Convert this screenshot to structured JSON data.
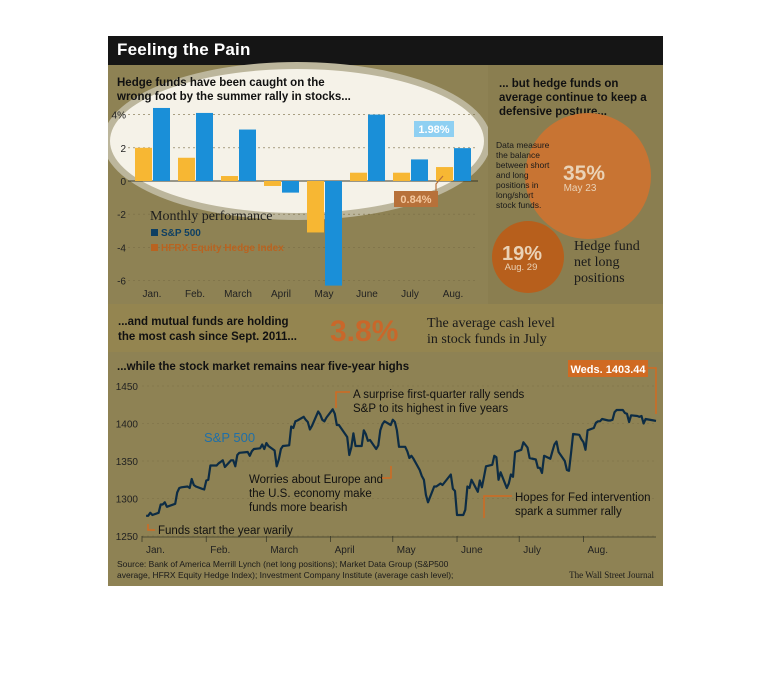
{
  "title": "Feeling the Pain",
  "colors": {
    "background": "#8e8254",
    "title_bar": "#151515",
    "sp500_bar": "#1a8fd8",
    "hfrx_bar": "#f7b733",
    "sp500_dark": "#0e3f62",
    "hfrx_dark": "#b96320",
    "highlight": "#f5f2e8",
    "circle_35": "#c87433",
    "circle_19": "#b75f1c",
    "accent_label": "#d06a22",
    "line": "#0d2c44"
  },
  "chart_data": [
    {
      "type": "bar",
      "title": "Hedge funds have been caught on the wrong foot by the summer rally in stocks...",
      "subtitle": "Monthly performance",
      "categories": [
        "Jan.",
        "Feb.",
        "March",
        "April",
        "May",
        "June",
        "July",
        "Aug."
      ],
      "series": [
        {
          "name": "S&P 500",
          "values": [
            4.4,
            4.1,
            3.1,
            -0.7,
            -6.3,
            4.0,
            1.3,
            1.98
          ]
        },
        {
          "name": "HFRX Equity Hedge Index",
          "values": [
            2.0,
            1.4,
            0.3,
            -0.3,
            -3.1,
            0.5,
            0.5,
            0.84
          ]
        }
      ],
      "yticks": [
        "4%",
        "2",
        "0",
        "-2",
        "-4",
        "-6"
      ],
      "ylim": [
        -6.5,
        4.6
      ],
      "annotations": [
        "1.98%",
        "0.84%"
      ],
      "legend_position": "center-left"
    },
    {
      "type": "line",
      "title": "...while the stock market remains near five-year highs",
      "series_label": "S&P 500",
      "ylim": [
        1250,
        1450
      ],
      "yticks": [
        "1450",
        "1400",
        "1350",
        "1300",
        "1250"
      ],
      "xticks": [
        "Jan.",
        "Feb.",
        "March",
        "April",
        "May",
        "June",
        "July",
        "Aug."
      ],
      "x_range": [
        "2012-01-01",
        "2012-09-05"
      ],
      "points": [
        [
          "2012-01-03",
          1277
        ],
        [
          "2012-01-04",
          1277
        ],
        [
          "2012-01-05",
          1281
        ],
        [
          "2012-01-06",
          1278
        ],
        [
          "2012-01-09",
          1281
        ],
        [
          "2012-01-10",
          1292
        ],
        [
          "2012-01-11",
          1292
        ],
        [
          "2012-01-12",
          1295
        ],
        [
          "2012-01-13",
          1289
        ],
        [
          "2012-01-17",
          1293
        ],
        [
          "2012-01-18",
          1308
        ],
        [
          "2012-01-19",
          1314
        ],
        [
          "2012-01-20",
          1315
        ],
        [
          "2012-01-23",
          1316
        ],
        [
          "2012-01-24",
          1314
        ],
        [
          "2012-01-25",
          1326
        ],
        [
          "2012-01-26",
          1318
        ],
        [
          "2012-01-27",
          1316
        ],
        [
          "2012-01-30",
          1313
        ],
        [
          "2012-01-31",
          1312
        ],
        [
          "2012-02-01",
          1324
        ],
        [
          "2012-02-02",
          1325
        ],
        [
          "2012-02-03",
          1344
        ],
        [
          "2012-02-06",
          1344
        ],
        [
          "2012-02-07",
          1347
        ],
        [
          "2012-02-08",
          1349
        ],
        [
          "2012-02-09",
          1351
        ],
        [
          "2012-02-10",
          1342
        ],
        [
          "2012-02-13",
          1351
        ],
        [
          "2012-02-14",
          1351
        ],
        [
          "2012-02-15",
          1343
        ],
        [
          "2012-02-16",
          1358
        ],
        [
          "2012-02-17",
          1361
        ],
        [
          "2012-02-21",
          1362
        ],
        [
          "2012-02-22",
          1357
        ],
        [
          "2012-02-23",
          1363
        ],
        [
          "2012-02-24",
          1366
        ],
        [
          "2012-02-27",
          1367
        ],
        [
          "2012-02-28",
          1372
        ],
        [
          "2012-02-29",
          1366
        ],
        [
          "2012-03-01",
          1374
        ],
        [
          "2012-03-02",
          1370
        ],
        [
          "2012-03-05",
          1364
        ],
        [
          "2012-03-06",
          1343
        ],
        [
          "2012-03-07",
          1352
        ],
        [
          "2012-03-08",
          1366
        ],
        [
          "2012-03-09",
          1370
        ],
        [
          "2012-03-12",
          1371
        ],
        [
          "2012-03-13",
          1396
        ],
        [
          "2012-03-14",
          1394
        ],
        [
          "2012-03-15",
          1403
        ],
        [
          "2012-03-16",
          1404
        ],
        [
          "2012-03-19",
          1409
        ],
        [
          "2012-03-20",
          1405
        ],
        [
          "2012-03-21",
          1402
        ],
        [
          "2012-03-22",
          1392
        ],
        [
          "2012-03-23",
          1397
        ],
        [
          "2012-03-26",
          1416
        ],
        [
          "2012-03-27",
          1412
        ],
        [
          "2012-03-28",
          1405
        ],
        [
          "2012-03-29",
          1403
        ],
        [
          "2012-03-30",
          1408
        ],
        [
          "2012-04-02",
          1419
        ],
        [
          "2012-04-03",
          1413
        ],
        [
          "2012-04-04",
          1398
        ],
        [
          "2012-04-05",
          1398
        ],
        [
          "2012-04-09",
          1382
        ],
        [
          "2012-04-10",
          1358
        ],
        [
          "2012-04-11",
          1368
        ],
        [
          "2012-04-12",
          1387
        ],
        [
          "2012-04-13",
          1370
        ],
        [
          "2012-04-16",
          1370
        ],
        [
          "2012-04-17",
          1391
        ],
        [
          "2012-04-18",
          1386
        ],
        [
          "2012-04-19",
          1377
        ],
        [
          "2012-04-20",
          1378
        ],
        [
          "2012-04-23",
          1366
        ],
        [
          "2012-04-24",
          1371
        ],
        [
          "2012-04-25",
          1391
        ],
        [
          "2012-04-26",
          1399
        ],
        [
          "2012-04-27",
          1403
        ],
        [
          "2012-04-30",
          1398
        ],
        [
          "2012-05-01",
          1405
        ],
        [
          "2012-05-02",
          1402
        ],
        [
          "2012-05-03",
          1391
        ],
        [
          "2012-05-04",
          1369
        ],
        [
          "2012-05-07",
          1369
        ],
        [
          "2012-05-08",
          1363
        ],
        [
          "2012-05-09",
          1354
        ],
        [
          "2012-05-10",
          1357
        ],
        [
          "2012-05-11",
          1353
        ],
        [
          "2012-05-14",
          1338
        ],
        [
          "2012-05-15",
          1330
        ],
        [
          "2012-05-16",
          1325
        ],
        [
          "2012-05-17",
          1305
        ],
        [
          "2012-05-18",
          1295
        ],
        [
          "2012-05-21",
          1316
        ],
        [
          "2012-05-22",
          1316
        ],
        [
          "2012-05-23",
          1318
        ],
        [
          "2012-05-24",
          1320
        ],
        [
          "2012-05-25",
          1318
        ],
        [
          "2012-05-29",
          1332
        ],
        [
          "2012-05-30",
          1313
        ],
        [
          "2012-05-31",
          1310
        ],
        [
          "2012-06-01",
          1278
        ],
        [
          "2012-06-04",
          1278
        ],
        [
          "2012-06-05",
          1285
        ],
        [
          "2012-06-06",
          1316
        ],
        [
          "2012-06-07",
          1314
        ],
        [
          "2012-06-08",
          1325
        ],
        [
          "2012-06-11",
          1309
        ],
        [
          "2012-06-12",
          1324
        ],
        [
          "2012-06-13",
          1315
        ],
        [
          "2012-06-14",
          1329
        ],
        [
          "2012-06-15",
          1343
        ],
        [
          "2012-06-18",
          1345
        ],
        [
          "2012-06-19",
          1357
        ],
        [
          "2012-06-20",
          1355
        ],
        [
          "2012-06-21",
          1325
        ],
        [
          "2012-06-22",
          1335
        ],
        [
          "2012-06-25",
          1314
        ],
        [
          "2012-06-26",
          1320
        ],
        [
          "2012-06-27",
          1332
        ],
        [
          "2012-06-28",
          1329
        ],
        [
          "2012-06-29",
          1362
        ],
        [
          "2012-07-02",
          1365
        ],
        [
          "2012-07-03",
          1375
        ],
        [
          "2012-07-05",
          1368
        ],
        [
          "2012-07-06",
          1354
        ],
        [
          "2012-07-09",
          1352
        ],
        [
          "2012-07-10",
          1341
        ],
        [
          "2012-07-11",
          1341
        ],
        [
          "2012-07-12",
          1334
        ],
        [
          "2012-07-13",
          1357
        ],
        [
          "2012-07-16",
          1353
        ],
        [
          "2012-07-17",
          1363
        ],
        [
          "2012-07-18",
          1372
        ],
        [
          "2012-07-19",
          1376
        ],
        [
          "2012-07-20",
          1362
        ],
        [
          "2012-07-23",
          1350
        ],
        [
          "2012-07-24",
          1338
        ],
        [
          "2012-07-25",
          1337
        ],
        [
          "2012-07-26",
          1360
        ],
        [
          "2012-07-27",
          1386
        ],
        [
          "2012-07-30",
          1385
        ],
        [
          "2012-07-31",
          1379
        ],
        [
          "2012-08-01",
          1375
        ],
        [
          "2012-08-02",
          1365
        ],
        [
          "2012-08-03",
          1391
        ],
        [
          "2012-08-06",
          1394
        ],
        [
          "2012-08-07",
          1401
        ],
        [
          "2012-08-08",
          1403
        ],
        [
          "2012-08-09",
          1403
        ],
        [
          "2012-08-10",
          1406
        ],
        [
          "2012-08-13",
          1404
        ],
        [
          "2012-08-14",
          1404
        ],
        [
          "2012-08-15",
          1405
        ],
        [
          "2012-08-16",
          1415
        ],
        [
          "2012-08-17",
          1418
        ],
        [
          "2012-08-20",
          1418
        ],
        [
          "2012-08-21",
          1414
        ],
        [
          "2012-08-22",
          1413
        ],
        [
          "2012-08-23",
          1402
        ],
        [
          "2012-08-24",
          1411
        ],
        [
          "2012-08-27",
          1410
        ],
        [
          "2012-08-28",
          1409
        ],
        [
          "2012-08-29",
          1410
        ],
        [
          "2012-08-30",
          1400
        ],
        [
          "2012-08-31",
          1406
        ],
        [
          "2012-09-04",
          1404
        ],
        [
          "2012-09-05",
          1403.44
        ]
      ],
      "annotations": [
        "A surprise first-quarter rally sends S&P to its highest in five years",
        "Worries about Europe and the U.S. economy make funds more bearish",
        "Hopes for Fed intervention spark a summer rally",
        "Funds start the year warily"
      ],
      "end_label": "Weds. 1403.44"
    }
  ],
  "right_panel": {
    "heading": "... but hedge funds on average continue to keep a defensive posture...",
    "note": "Data measure the balance between short and long positions in long/short stock funds.",
    "big_value": "35%",
    "big_date": "May 23",
    "small_value": "19%",
    "small_date": "Aug. 29",
    "small_label": "Hedge fund net long positions"
  },
  "cash_band": {
    "heading": "...and mutual funds are holding the most cash since Sept. 2011...",
    "value": "3.8%",
    "label": "The average cash level in stock funds in July"
  },
  "footer": {
    "source": "Source: Bank of America Merrill Lynch (net long positions); Market Data Group (S&P500 average, HFRX Equity Hedge Index); Investment Company Institute (average cash level);",
    "credit": "The Wall Street Journal"
  }
}
